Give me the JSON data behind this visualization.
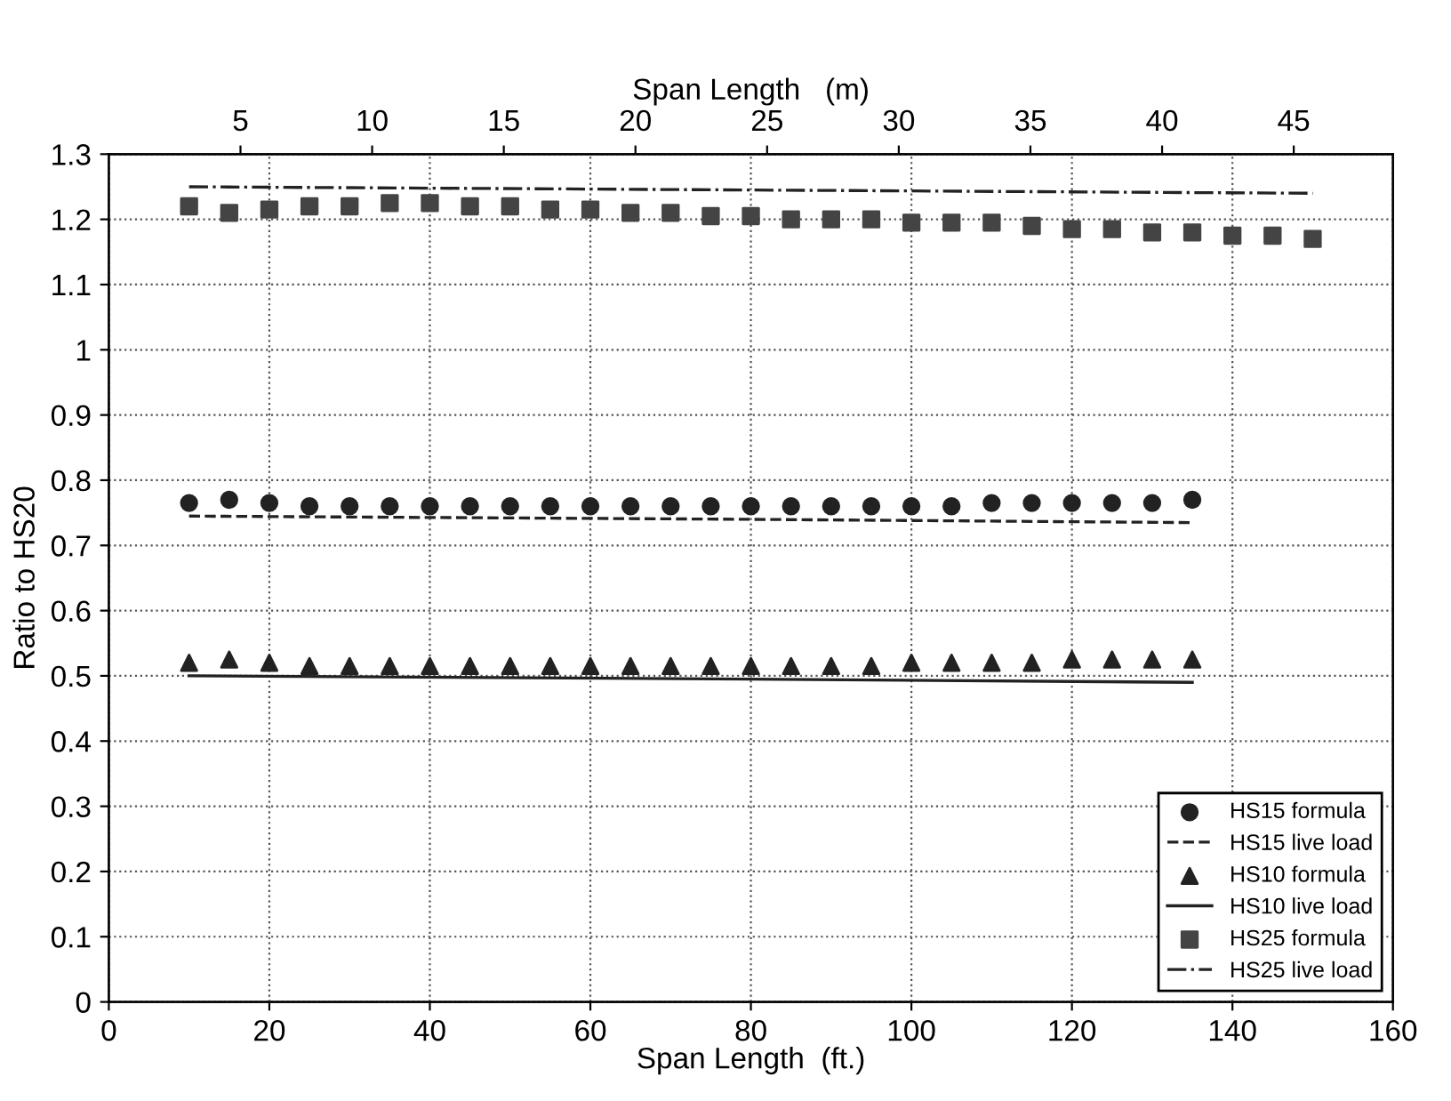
{
  "chart_data": {
    "type": "scatter",
    "xlabel": "Span Length  (ft.)",
    "ylabel": "Ratio to HS20",
    "x2label": "Span Length   (m)",
    "xlim": [
      0,
      160
    ],
    "xticks": [
      0,
      20,
      40,
      60,
      80,
      100,
      120,
      140,
      160
    ],
    "x2lim": [
      0,
      48.768
    ],
    "x2ticks": [
      5,
      10,
      15,
      20,
      25,
      30,
      35,
      40,
      45
    ],
    "ylim": [
      0,
      1.3
    ],
    "yticks": [
      0,
      0.1,
      0.2,
      0.3,
      0.4,
      0.5,
      0.6,
      0.7,
      0.8,
      0.9,
      1,
      1.1,
      1.2,
      1.3
    ],
    "grid": true,
    "legend": "bottom right",
    "series": [
      {
        "name": "HS15 formula",
        "marker": "circle",
        "color": "#222222",
        "x": [
          10,
          15,
          20,
          25,
          30,
          35,
          40,
          45,
          50,
          55,
          60,
          65,
          70,
          75,
          80,
          85,
          90,
          95,
          100,
          105,
          110,
          115,
          120,
          125,
          130,
          135
        ],
        "values": [
          0.765,
          0.77,
          0.765,
          0.76,
          0.76,
          0.76,
          0.76,
          0.76,
          0.76,
          0.76,
          0.76,
          0.76,
          0.76,
          0.76,
          0.76,
          0.76,
          0.76,
          0.76,
          0.76,
          0.76,
          0.765,
          0.765,
          0.765,
          0.765,
          0.765,
          0.77
        ]
      },
      {
        "name": "HS15 live load",
        "type": "line",
        "line_style": "dashed",
        "color": "#222222",
        "x": [
          10,
          80,
          135
        ],
        "values": [
          0.745,
          0.74,
          0.735
        ]
      },
      {
        "name": "HS10 formula",
        "marker": "triangle",
        "color": "#222222",
        "x": [
          10,
          15,
          20,
          25,
          30,
          35,
          40,
          45,
          50,
          55,
          60,
          65,
          70,
          75,
          80,
          85,
          90,
          95,
          100,
          105,
          110,
          115,
          120,
          125,
          130,
          135
        ],
        "values": [
          0.52,
          0.525,
          0.52,
          0.515,
          0.515,
          0.515,
          0.515,
          0.515,
          0.515,
          0.515,
          0.515,
          0.515,
          0.515,
          0.515,
          0.515,
          0.515,
          0.515,
          0.515,
          0.52,
          0.52,
          0.52,
          0.52,
          0.525,
          0.525,
          0.525,
          0.525
        ]
      },
      {
        "name": "HS10 live load",
        "type": "line",
        "line_style": "solid",
        "color": "#222222",
        "x": [
          10,
          80,
          135
        ],
        "values": [
          0.5,
          0.495,
          0.49
        ]
      },
      {
        "name": "HS25 formula",
        "marker": "square",
        "color": "#444444",
        "x": [
          10,
          15,
          20,
          25,
          30,
          35,
          40,
          45,
          50,
          55,
          60,
          65,
          70,
          75,
          80,
          85,
          90,
          95,
          100,
          105,
          110,
          115,
          120,
          125,
          130,
          135,
          140,
          145,
          150
        ],
        "values": [
          1.22,
          1.21,
          1.215,
          1.22,
          1.22,
          1.225,
          1.225,
          1.22,
          1.22,
          1.215,
          1.215,
          1.21,
          1.21,
          1.205,
          1.205,
          1.2,
          1.2,
          1.2,
          1.195,
          1.195,
          1.195,
          1.19,
          1.185,
          1.185,
          1.18,
          1.18,
          1.175,
          1.175,
          1.17
        ]
      },
      {
        "name": "HS25 live load",
        "type": "line",
        "line_style": "dashdot",
        "color": "#222222",
        "x": [
          10,
          80,
          150
        ],
        "values": [
          1.25,
          1.245,
          1.24
        ]
      }
    ]
  }
}
